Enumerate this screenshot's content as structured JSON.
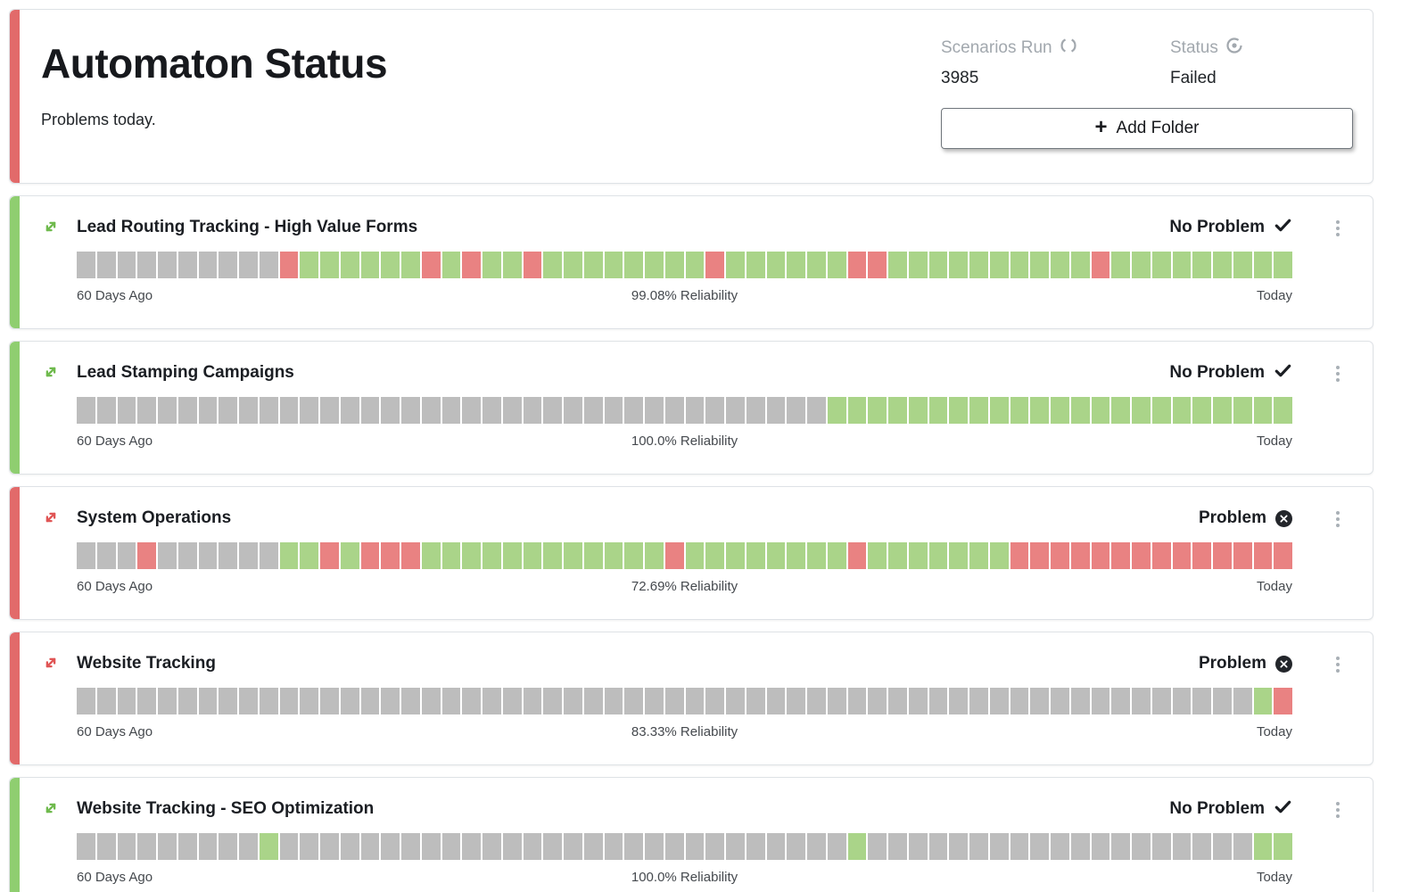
{
  "colors": {
    "strip_red": "#e26a6a",
    "strip_green": "#8fce70",
    "square_gray": "#bdbdbd",
    "square_green": "#aad489",
    "square_red": "#e98282",
    "expand_ok": "#6fba4d",
    "expand_problem": "#e05555"
  },
  "header": {
    "title": "Automaton Status",
    "subtitle": "Problems today.",
    "stats": [
      {
        "label": "Scenarios Run",
        "icon": "refresh-icon",
        "value": "3985"
      },
      {
        "label": "Status",
        "icon": "target-icon",
        "value": "Failed"
      }
    ],
    "add_folder": {
      "plus": "+",
      "label": "Add Folder"
    }
  },
  "cards": [
    {
      "title": "Lead Routing Tracking - High Value Forms",
      "status": "No Problem",
      "ok": true,
      "left_label": "60 Days Ago",
      "center_label": "99.08% Reliability",
      "right_label": "Today",
      "squares": "xxxxxxxxxxrggggggrgrggrggggggggrggggggrrggggggggggrggggggggg"
    },
    {
      "title": "Lead Stamping Campaigns",
      "status": "No Problem",
      "ok": true,
      "left_label": "60 Days Ago",
      "center_label": "100.0% Reliability",
      "right_label": "Today",
      "squares": "xxxxxxxxxxxxxxxxxxxxxxxxxxxxxxxxxxxxxggggggggggggggggggggggg"
    },
    {
      "title": "System Operations",
      "status": "Problem",
      "ok": false,
      "left_label": "60 Days Ago",
      "center_label": "72.69% Reliability",
      "right_label": "Today",
      "squares": "xxxrxxxxxxggrgrrrggggggggggggrggggggggrgggggggrrrrrrrrrrrrrr"
    },
    {
      "title": "Website Tracking",
      "status": "Problem",
      "ok": false,
      "left_label": "60 Days Ago",
      "center_label": "83.33% Reliability",
      "right_label": "Today",
      "squares": "xxxxxxxxxxxxxxxxxxxxxxxxxxxxxxxxxxxxxxxxxxxxxxxxxxxxxxxxxxgr"
    },
    {
      "title": "Website Tracking - SEO Optimization",
      "status": "No Problem",
      "ok": true,
      "left_label": "60 Days Ago",
      "center_label": "100.0% Reliability",
      "right_label": "Today",
      "squares": "xxxxxxxxxgxxxxxxxxxxxxxxxxxxxxxxxxxxxxgxxxxxxxxxxxxxxxxxxxgg"
    }
  ]
}
